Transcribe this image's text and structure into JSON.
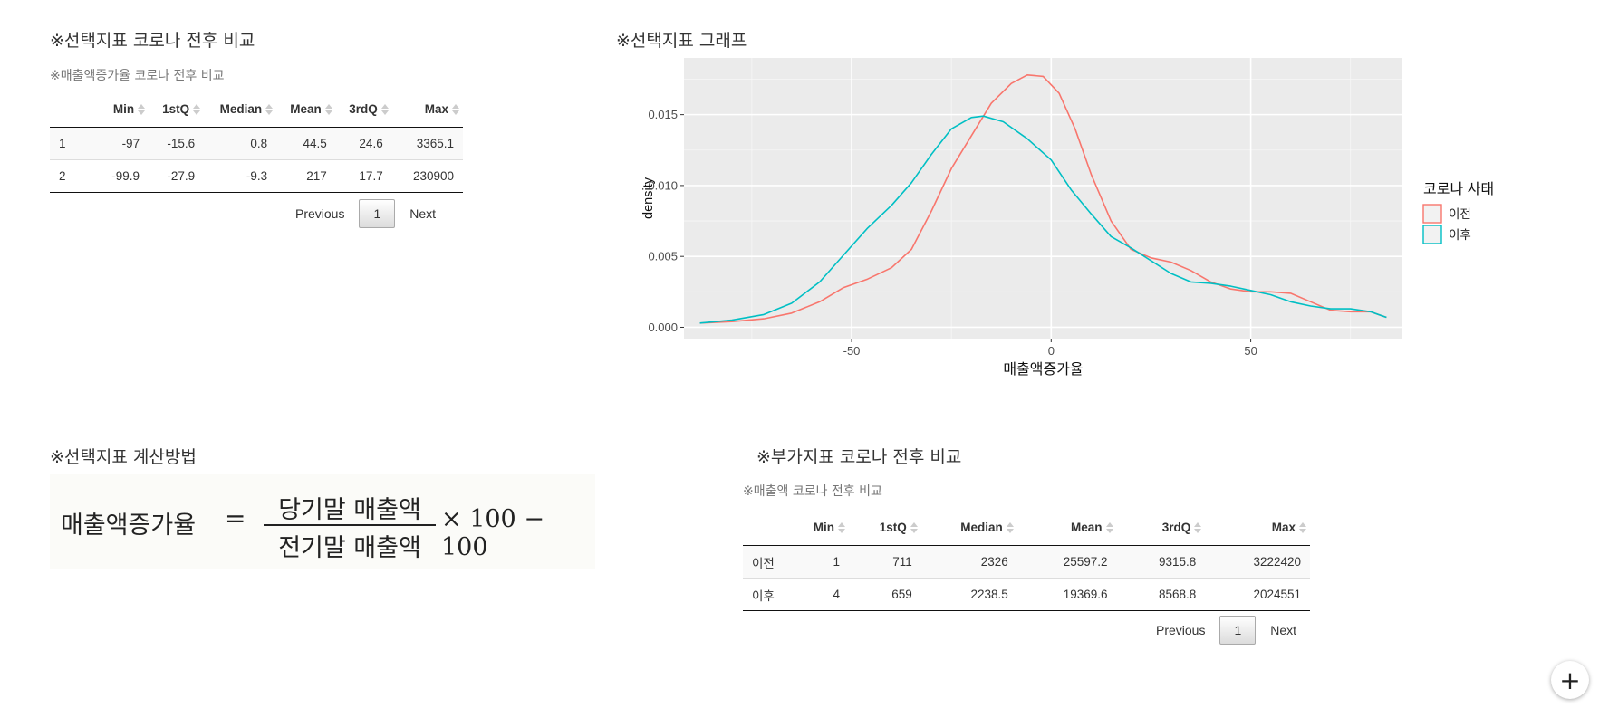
{
  "left": {
    "title": "※선택지표 코로나 전후 비교",
    "subtitle": "※매출액증가율 코로나 전후 비교",
    "columns": [
      "",
      "Min",
      "1stQ",
      "Median",
      "Mean",
      "3rdQ",
      "Max"
    ],
    "rows": [
      [
        "1",
        "-97",
        "-15.6",
        "0.8",
        "44.5",
        "24.6",
        "3365.1"
      ],
      [
        "2",
        "-99.9",
        "-27.9",
        "-9.3",
        "217",
        "17.7",
        "230900"
      ]
    ],
    "pager": {
      "previous": "Previous",
      "page": "1",
      "next": "Next"
    }
  },
  "graph": {
    "title": "※선택지표 그래프"
  },
  "method": {
    "title": "※선택지표 계산방법",
    "formula": {
      "lhs": "매출액증가율",
      "eq": "=",
      "numerator": "당기말 매출액",
      "denominator": "전기말 매출액",
      "tail": "× 100 − 100"
    }
  },
  "extra": {
    "title": "※부가지표 코로나 전후 비교",
    "subtitle": "※매출액 코로나 전후 비교",
    "columns": [
      "",
      "Min",
      "1stQ",
      "Median",
      "Mean",
      "3rdQ",
      "Max"
    ],
    "rows": [
      [
        "이전",
        "1",
        "711",
        "2326",
        "25597.2",
        "9315.8",
        "3222420"
      ],
      [
        "이후",
        "4",
        "659",
        "2238.5",
        "19369.6",
        "8568.8",
        "2024551"
      ]
    ],
    "pager": {
      "previous": "Previous",
      "page": "1",
      "next": "Next"
    }
  },
  "fab": {
    "icon": "plus-icon",
    "symbol": "+"
  },
  "chart_data": {
    "type": "line",
    "title": "",
    "xlabel": "매출액증가율",
    "ylabel": "density",
    "xlim": [
      -92,
      88
    ],
    "ylim": [
      -0.0008,
      0.019
    ],
    "x_ticks": [
      -50,
      0,
      50
    ],
    "x_tick_labels": [
      "-50",
      "0",
      "50"
    ],
    "y_ticks": [
      0.0,
      0.005,
      0.01,
      0.015
    ],
    "y_tick_labels": [
      "0.000",
      "0.005",
      "0.010",
      "0.015"
    ],
    "grid": true,
    "legend": {
      "title": "코로나 사태",
      "position": "right"
    },
    "series": [
      {
        "name": "이전",
        "color": "#F8766D",
        "x": [
          -88,
          -80,
          -72,
          -65,
          -58,
          -52,
          -46,
          -40,
          -35,
          -30,
          -25,
          -20,
          -15,
          -10,
          -6,
          -2,
          2,
          6,
          10,
          15,
          20,
          25,
          30,
          35,
          40,
          45,
          50,
          55,
          60,
          65,
          70,
          75,
          80,
          84
        ],
        "y": [
          0.0003,
          0.0004,
          0.0006,
          0.001,
          0.0018,
          0.0028,
          0.0034,
          0.0042,
          0.0055,
          0.0082,
          0.0112,
          0.0135,
          0.0158,
          0.0172,
          0.0178,
          0.0177,
          0.0165,
          0.014,
          0.0108,
          0.0075,
          0.0055,
          0.0049,
          0.0046,
          0.004,
          0.0032,
          0.0027,
          0.0025,
          0.0025,
          0.0024,
          0.0018,
          0.0012,
          0.0011,
          0.0011,
          0.0007
        ]
      },
      {
        "name": "이후",
        "color": "#00BFC4",
        "x": [
          -88,
          -80,
          -72,
          -65,
          -58,
          -52,
          -46,
          -40,
          -35,
          -30,
          -25,
          -20,
          -17,
          -12,
          -6,
          0,
          5,
          10,
          15,
          20,
          25,
          30,
          35,
          40,
          45,
          50,
          55,
          60,
          65,
          70,
          75,
          80,
          84
        ],
        "y": [
          0.0003,
          0.0005,
          0.0009,
          0.0017,
          0.0032,
          0.0051,
          0.007,
          0.0086,
          0.0102,
          0.0122,
          0.014,
          0.0148,
          0.0149,
          0.0145,
          0.0133,
          0.0118,
          0.0097,
          0.008,
          0.0064,
          0.0056,
          0.0047,
          0.0038,
          0.0032,
          0.0031,
          0.0029,
          0.0026,
          0.0023,
          0.0018,
          0.0015,
          0.0013,
          0.0013,
          0.0011,
          0.0007
        ]
      }
    ]
  }
}
